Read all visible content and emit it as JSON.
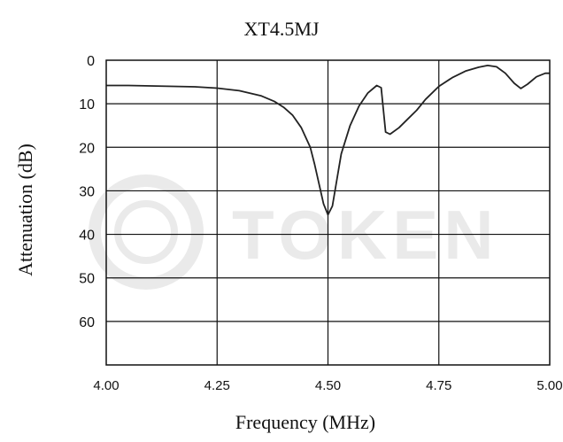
{
  "chart_data": {
    "type": "line",
    "title": "XT4.5MJ",
    "xlabel": "Frequency (MHz)",
    "ylabel": "Attenuation (dB)",
    "xlim": [
      4.0,
      5.0
    ],
    "ylim": [
      0,
      70
    ],
    "y_inverted": true,
    "grid": true,
    "x_ticks": [
      "4.00",
      "4.25",
      "4.50",
      "4.75",
      "5.00"
    ],
    "y_ticks": [
      "0",
      "10",
      "20",
      "30",
      "40",
      "50",
      "60"
    ],
    "watermark": "TOKEN",
    "colors": {
      "line": "#222222",
      "grid": "#111111",
      "watermark": "#d8d8d8"
    },
    "series": [
      {
        "points": [
          [
            4.0,
            5.8
          ],
          [
            4.05,
            5.8
          ],
          [
            4.1,
            5.9
          ],
          [
            4.15,
            6.0
          ],
          [
            4.2,
            6.1
          ],
          [
            4.25,
            6.4
          ],
          [
            4.3,
            7.0
          ],
          [
            4.35,
            8.2
          ],
          [
            4.38,
            9.5
          ],
          [
            4.4,
            10.8
          ],
          [
            4.42,
            12.6
          ],
          [
            4.44,
            15.5
          ],
          [
            4.46,
            20.0
          ],
          [
            4.47,
            24.0
          ],
          [
            4.48,
            28.5
          ],
          [
            4.49,
            33.0
          ],
          [
            4.5,
            35.5
          ],
          [
            4.51,
            33.5
          ],
          [
            4.52,
            27.5
          ],
          [
            4.53,
            21.5
          ],
          [
            4.55,
            15.0
          ],
          [
            4.57,
            10.5
          ],
          [
            4.59,
            7.5
          ],
          [
            4.61,
            5.8
          ],
          [
            4.62,
            6.3
          ],
          [
            4.63,
            16.5
          ],
          [
            4.64,
            17.0
          ],
          [
            4.66,
            15.5
          ],
          [
            4.68,
            13.5
          ],
          [
            4.7,
            11.5
          ],
          [
            4.72,
            9.0
          ],
          [
            4.75,
            6.0
          ],
          [
            4.78,
            4.0
          ],
          [
            4.81,
            2.5
          ],
          [
            4.84,
            1.6
          ],
          [
            4.86,
            1.2
          ],
          [
            4.88,
            1.5
          ],
          [
            4.9,
            3.0
          ],
          [
            4.92,
            5.3
          ],
          [
            4.935,
            6.5
          ],
          [
            4.95,
            5.5
          ],
          [
            4.97,
            3.8
          ],
          [
            4.99,
            3.0
          ],
          [
            5.0,
            3.0
          ]
        ]
      }
    ]
  }
}
